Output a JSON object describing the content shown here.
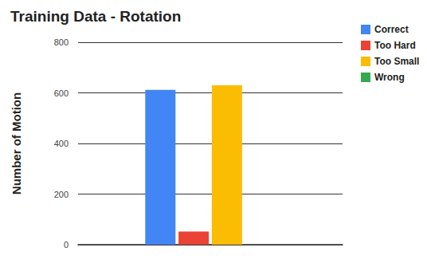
{
  "chart_data": {
    "type": "bar",
    "title": "Training Data - Rotation",
    "y_label": "Number of Motion",
    "categories": [
      null
    ],
    "series": [
      {
        "name": "Correct",
        "color": "#4285f4",
        "values": [
          612
        ]
      },
      {
        "name": "Too Hard",
        "color": "#ea4335",
        "values": [
          52
        ]
      },
      {
        "name": "Too Small",
        "color": "#fbbc04",
        "values": [
          630
        ]
      },
      {
        "name": "Wrong",
        "color": "#34a853",
        "values": [
          0
        ]
      }
    ],
    "ylim": [
      0,
      800
    ],
    "yticks": [
      0,
      200,
      400,
      600,
      800
    ],
    "grid": true,
    "legend": "right",
    "tick_labels": "y"
  }
}
